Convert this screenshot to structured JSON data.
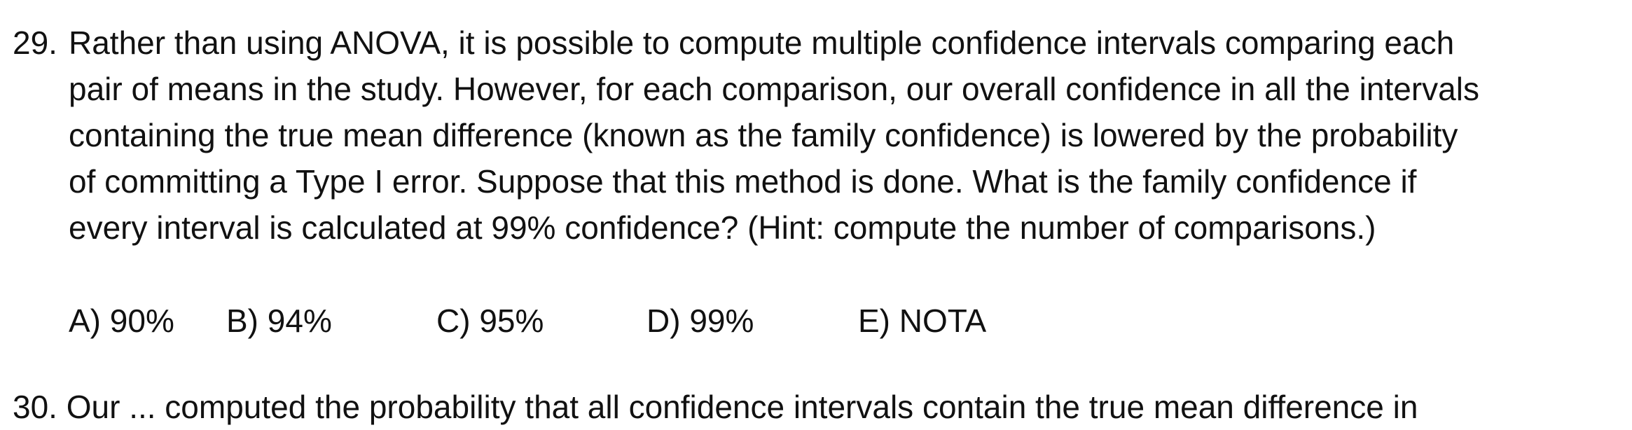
{
  "question": {
    "number": "29.",
    "lines": [
      "Rather than using ANOVA, it is possible to compute multiple confidence intervals comparing each",
      "pair of means in the study. However, for each comparison, our overall confidence in all the intervals",
      "containing the true mean difference (known as the family confidence) is lowered by the probability",
      "of committing a Type I error. Suppose that this method is done. What is the family confidence if",
      "every interval is calculated at 99% confidence? (Hint: compute the number of comparisons.)"
    ]
  },
  "choices": [
    "A) 90%",
    "B) 94%",
    "C) 95%",
    "D) 99%",
    "E) NOTA"
  ],
  "next_question_partial": "30. Our ... computed the probability that all confidence intervals contain the true mean difference in"
}
